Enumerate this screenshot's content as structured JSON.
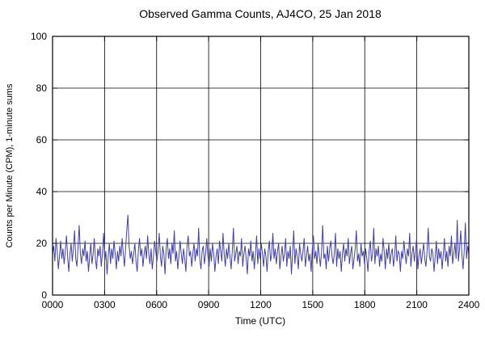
{
  "chart_data": {
    "type": "line",
    "title": "Observed Gamma Counts, AJ4CO, 25 Jan 2018",
    "xlabel": "Time (UTC)",
    "ylabel": "Counts per Minute (CPM), 1-minute sums",
    "xlim": [
      0,
      1440
    ],
    "ylim": [
      0,
      100
    ],
    "grid": true,
    "legend_position": "none",
    "x_ticks": {
      "values": [
        0,
        180,
        360,
        540,
        720,
        900,
        1080,
        1260,
        1440
      ],
      "labels": [
        "0000",
        "0300",
        "0600",
        "0900",
        "1200",
        "1500",
        "1800",
        "2100",
        "2400"
      ]
    },
    "y_ticks": {
      "values": [
        0,
        20,
        40,
        60,
        80,
        100
      ],
      "labels": [
        "0",
        "20",
        "40",
        "60",
        "80",
        "100"
      ]
    },
    "series": [
      {
        "name": "observed-gamma-counts",
        "color": "#4141a0",
        "sample_interval_minutes": 4,
        "values": [
          16,
          19,
          13,
          22,
          17,
          10,
          15,
          21,
          14,
          18,
          12,
          17,
          23,
          15,
          9,
          16,
          20,
          13,
          18,
          25,
          14,
          11,
          19,
          27,
          16,
          12,
          18,
          15,
          21,
          13,
          17,
          9,
          15,
          20,
          12,
          16,
          22,
          14,
          10,
          18,
          15,
          19,
          11,
          16,
          24,
          13,
          17,
          8,
          15,
          20,
          12,
          18,
          14,
          21,
          16,
          10,
          17,
          13,
          19,
          15,
          22,
          16,
          11,
          18,
          25,
          31,
          19,
          14,
          17,
          12,
          16,
          20,
          13,
          9,
          17,
          22,
          15,
          18,
          11,
          16,
          19,
          14,
          23,
          16,
          12,
          18,
          10,
          15,
          21,
          17,
          13,
          17,
          24,
          15,
          11,
          19,
          16,
          8,
          18,
          22,
          14,
          18,
          12,
          20,
          16,
          25,
          13,
          17,
          10,
          15,
          21,
          16,
          12,
          18,
          14,
          9,
          19,
          23,
          15,
          17,
          11,
          16,
          20,
          13,
          18,
          15,
          26,
          14,
          10,
          17,
          19,
          12,
          16,
          22,
          15,
          11,
          18,
          13,
          20,
          16,
          9,
          15,
          18,
          12,
          21,
          17,
          13,
          24,
          16,
          11,
          18,
          14,
          20,
          15,
          10,
          17,
          26,
          13,
          16,
          19,
          12,
          17,
          15,
          22,
          11,
          16,
          19,
          14,
          8,
          18,
          15,
          21,
          13,
          17,
          10,
          16,
          23,
          12,
          18,
          14,
          20,
          16,
          11,
          18,
          15,
          9,
          17,
          21,
          13,
          16,
          24,
          14,
          18,
          12,
          17,
          20,
          10,
          15,
          19,
          13,
          16,
          22,
          11,
          17,
          14,
          19,
          8,
          16,
          25,
          12,
          18,
          15,
          10,
          20,
          16,
          13,
          17,
          22,
          11,
          15,
          19,
          13,
          16,
          9,
          18,
          23,
          14,
          17,
          12,
          20,
          15,
          11,
          17,
          27,
          14,
          16,
          10,
          19,
          13,
          18,
          21,
          15,
          12,
          16,
          24,
          11,
          18,
          14,
          17,
          9,
          16,
          20,
          13,
          18,
          15,
          22,
          12,
          16,
          19,
          10,
          14,
          18,
          25,
          13,
          16,
          11,
          20,
          15,
          17,
          12,
          18,
          14,
          9,
          17,
          21,
          13,
          16,
          26,
          12,
          18,
          15,
          19,
          11,
          16,
          13,
          22,
          17,
          10,
          18,
          14,
          20,
          12,
          16,
          18,
          11,
          15,
          23,
          13,
          17,
          16,
          9,
          17,
          14,
          21,
          16,
          12,
          18,
          15,
          24,
          11,
          16,
          19,
          13,
          17,
          22,
          10,
          15,
          18,
          12,
          16,
          20,
          14,
          11,
          17,
          26,
          15,
          13,
          18,
          16,
          9,
          15,
          21,
          12,
          18,
          14,
          17,
          10,
          16,
          22,
          13,
          17,
          11,
          19,
          15,
          23,
          12,
          16,
          20,
          14,
          29,
          13,
          18,
          25,
          16,
          10,
          17,
          28,
          14,
          19,
          16
        ]
      }
    ],
    "frame_color": "#000000",
    "grid_color": "#000000"
  }
}
